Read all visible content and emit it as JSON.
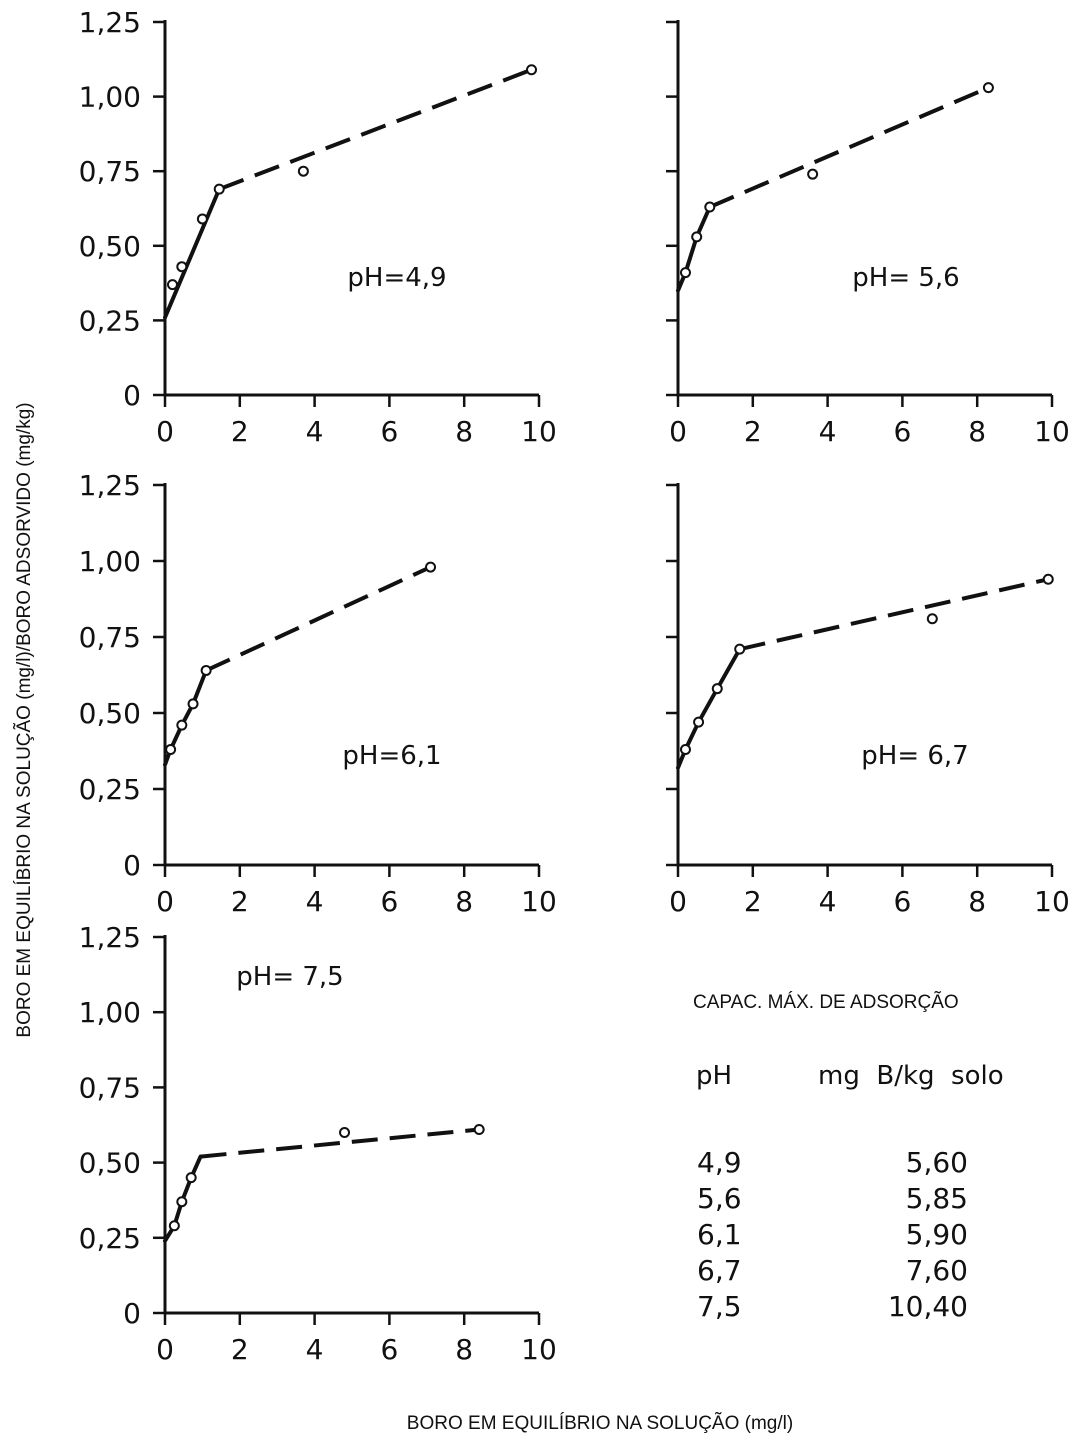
{
  "axis_titles": {
    "y": "BORO EM EQUILÍBRIO NA SOLUÇÃO (mg/l)/BORO ADSORVIDO (mg/kg)",
    "x": "BORO EM EQUILÍBRIO NA SOLUÇÃO (mg/l)"
  },
  "chart_data": [
    {
      "type": "scatter",
      "label": "pH=4,9",
      "xlim": [
        0,
        10
      ],
      "ylim": [
        0,
        1.25
      ],
      "x_ticks": [
        "0",
        "2",
        "4",
        "6",
        "8",
        "10"
      ],
      "y_ticks": [
        "0",
        "0,25",
        "0,50",
        "0,75",
        "1,00",
        "1,25"
      ],
      "points": [
        [
          0.2,
          0.37
        ],
        [
          0.45,
          0.43
        ],
        [
          1.0,
          0.59
        ],
        [
          1.45,
          0.69
        ],
        [
          3.7,
          0.75
        ],
        [
          9.8,
          1.09
        ]
      ],
      "solid_line": [
        [
          0,
          0.26
        ],
        [
          1.45,
          0.69
        ]
      ],
      "dashed_line": [
        [
          1.45,
          0.69
        ],
        [
          9.8,
          1.09
        ]
      ]
    },
    {
      "type": "scatter",
      "label": "pH= 5,6",
      "xlim": [
        0,
        10
      ],
      "ylim": [
        0,
        1.25
      ],
      "x_ticks": [
        "0",
        "2",
        "4",
        "6",
        "8",
        "10"
      ],
      "y_ticks": [],
      "points": [
        [
          0.2,
          0.41
        ],
        [
          0.5,
          0.53
        ],
        [
          0.85,
          0.63
        ],
        [
          3.6,
          0.74
        ],
        [
          8.3,
          1.03
        ]
      ],
      "solid_line": [
        [
          0,
          0.35
        ],
        [
          0.2,
          0.41
        ],
        [
          0.5,
          0.53
        ],
        [
          0.85,
          0.63
        ]
      ],
      "dashed_line": [
        [
          0.85,
          0.63
        ],
        [
          8.3,
          1.03
        ]
      ]
    },
    {
      "type": "scatter",
      "label": "pH=6,1",
      "xlim": [
        0,
        10
      ],
      "ylim": [
        0,
        1.25
      ],
      "x_ticks": [
        "0",
        "2",
        "4",
        "6",
        "8",
        "10"
      ],
      "y_ticks": [
        "0",
        "0,25",
        "0,50",
        "0,75",
        "1,00",
        "1,25"
      ],
      "points": [
        [
          0.15,
          0.38
        ],
        [
          0.45,
          0.46
        ],
        [
          0.75,
          0.53
        ],
        [
          1.1,
          0.64
        ],
        [
          7.1,
          0.98
        ]
      ],
      "solid_line": [
        [
          0,
          0.33
        ],
        [
          0.15,
          0.38
        ],
        [
          0.45,
          0.46
        ],
        [
          0.75,
          0.53
        ],
        [
          1.1,
          0.64
        ]
      ],
      "dashed_line": [
        [
          1.1,
          0.64
        ],
        [
          7.1,
          0.98
        ]
      ]
    },
    {
      "type": "scatter",
      "label": "pH= 6,7",
      "xlim": [
        0,
        10
      ],
      "ylim": [
        0,
        1.25
      ],
      "x_ticks": [
        "0",
        "2",
        "4",
        "6",
        "8",
        "10"
      ],
      "y_ticks": [],
      "points": [
        [
          0.2,
          0.38
        ],
        [
          0.55,
          0.47
        ],
        [
          1.05,
          0.58
        ],
        [
          1.65,
          0.71
        ],
        [
          6.8,
          0.81
        ],
        [
          9.9,
          0.94
        ]
      ],
      "solid_line": [
        [
          0,
          0.32
        ],
        [
          0.2,
          0.38
        ],
        [
          0.55,
          0.47
        ],
        [
          1.05,
          0.58
        ],
        [
          1.65,
          0.71
        ]
      ],
      "dashed_line": [
        [
          1.65,
          0.71
        ],
        [
          9.9,
          0.94
        ]
      ]
    },
    {
      "type": "scatter",
      "label": "pH= 7,5",
      "xlim": [
        0,
        10
      ],
      "ylim": [
        0,
        1.25
      ],
      "x_ticks": [
        "0",
        "2",
        "4",
        "6",
        "8",
        "10"
      ],
      "y_ticks": [
        "0",
        "0,25",
        "0,50",
        "0,75",
        "1,00",
        "1,25"
      ],
      "points": [
        [
          0.25,
          0.29
        ],
        [
          0.45,
          0.37
        ],
        [
          0.7,
          0.45
        ],
        [
          4.8,
          0.6
        ],
        [
          8.4,
          0.61
        ]
      ],
      "solid_line": [
        [
          0,
          0.24
        ],
        [
          0.25,
          0.29
        ],
        [
          0.45,
          0.37
        ],
        [
          0.7,
          0.45
        ],
        [
          0.95,
          0.52
        ]
      ],
      "dashed_line": [
        [
          0.95,
          0.52
        ],
        [
          8.4,
          0.61
        ]
      ]
    }
  ],
  "table": {
    "title": "CAPAC. MÁX. DE ADSORÇÃO",
    "col_ph": "pH",
    "col_value": "mg  B/kg  solo",
    "rows": [
      {
        "ph": "4,9",
        "value": "5,60"
      },
      {
        "ph": "5,6",
        "value": "5,85"
      },
      {
        "ph": "6,1",
        "value": "5,90"
      },
      {
        "ph": "6,7",
        "value": "7,60"
      },
      {
        "ph": "7,5",
        "value": "10,40"
      }
    ]
  }
}
